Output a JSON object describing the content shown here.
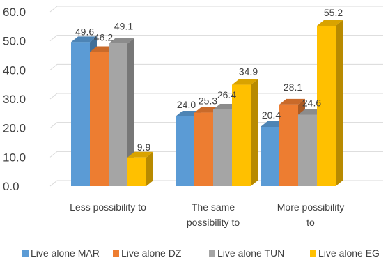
{
  "chart_data": {
    "type": "bar",
    "style": "3d-clustered-column",
    "categories": [
      [
        "Less possibility to"
      ],
      [
        "The same",
        "possibility to"
      ],
      [
        "More possibility",
        "to"
      ]
    ],
    "series": [
      {
        "name": "Live alone MAR",
        "color": "#5B9BD5",
        "values": [
          49.6,
          24.0,
          20.4
        ]
      },
      {
        "name": "Live alone DZ",
        "color": "#ED7D31",
        "values": [
          46.2,
          25.3,
          28.1
        ]
      },
      {
        "name": "Live alone TUN",
        "color": "#A5A5A5",
        "values": [
          49.1,
          26.4,
          24.6
        ]
      },
      {
        "name": "Live alone EG",
        "color": "#FFC000",
        "values": [
          9.9,
          34.9,
          55.2
        ]
      }
    ],
    "y_ticks": [
      "0.0",
      "10.0",
      "20.0",
      "30.0",
      "40.0",
      "50.0",
      "60.0"
    ],
    "ylim": [
      0,
      60
    ],
    "grid": true,
    "legend_position": "bottom",
    "title": "",
    "xlabel": "",
    "ylabel": ""
  }
}
